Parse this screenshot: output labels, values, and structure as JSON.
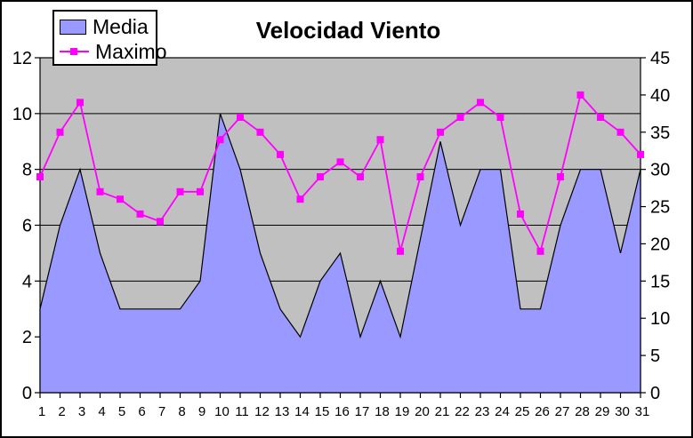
{
  "title": "Velocidad Viento",
  "legend": {
    "items": [
      {
        "label": "Media",
        "series_type": "area",
        "color": "#9999FF"
      },
      {
        "label": "Maximo",
        "series_type": "line",
        "color": "#FF00FF"
      }
    ]
  },
  "axes": {
    "left": {
      "labels": [
        "0",
        "2",
        "4",
        "6",
        "8",
        "10",
        "12"
      ]
    },
    "right": {
      "labels": [
        "0",
        "5",
        "10",
        "15",
        "20",
        "25",
        "30",
        "35",
        "40",
        "45"
      ]
    },
    "x": {
      "labels": [
        "1",
        "2",
        "3",
        "4",
        "5",
        "6",
        "7",
        "8",
        "9",
        "10",
        "11",
        "12",
        "13",
        "14",
        "15",
        "16",
        "17",
        "18",
        "19",
        "20",
        "21",
        "22",
        "23",
        "24",
        "25",
        "26",
        "27",
        "28",
        "29",
        "30",
        "31"
      ]
    }
  },
  "colors": {
    "background": "#FFFFFF",
    "frame_border": "#000000",
    "plot_bg": "#C0C0C0",
    "grid": "#000000",
    "text": "#000000",
    "area_fill": "#9999FF",
    "line": "#FF00FF"
  },
  "chart_data": {
    "type": "combo",
    "title": "Velocidad Viento",
    "categories": [
      1,
      2,
      3,
      4,
      5,
      6,
      7,
      8,
      9,
      10,
      11,
      12,
      13,
      14,
      15,
      16,
      17,
      18,
      19,
      20,
      21,
      22,
      23,
      24,
      25,
      26,
      27,
      28,
      29,
      30,
      31
    ],
    "series": [
      {
        "name": "Media",
        "type": "area",
        "axis": "left",
        "color": "#9999FF",
        "values": [
          3,
          6,
          8,
          5,
          3,
          3,
          3,
          3,
          4,
          10,
          8,
          5,
          3,
          2,
          4,
          5,
          2,
          4,
          2,
          5.5,
          9,
          6,
          8,
          8,
          3,
          3,
          6,
          8,
          8,
          5,
          8
        ]
      },
      {
        "name": "Maximo",
        "type": "line",
        "axis": "right",
        "color": "#FF00FF",
        "marker": "square",
        "values": [
          29,
          35,
          39,
          27,
          26,
          24,
          23,
          27,
          27,
          34,
          37,
          35,
          32,
          26,
          29,
          31,
          29,
          34,
          19,
          29,
          35,
          37,
          39,
          37,
          24,
          19,
          29,
          40,
          37,
          35,
          32
        ]
      }
    ],
    "left_axis": {
      "min": 0,
      "max": 12,
      "step": 2
    },
    "right_axis": {
      "min": 0,
      "max": 45,
      "step": 5
    },
    "grid": "horizontal",
    "legend_position": "top-left",
    "plot_bg": "#C0C0C0"
  }
}
